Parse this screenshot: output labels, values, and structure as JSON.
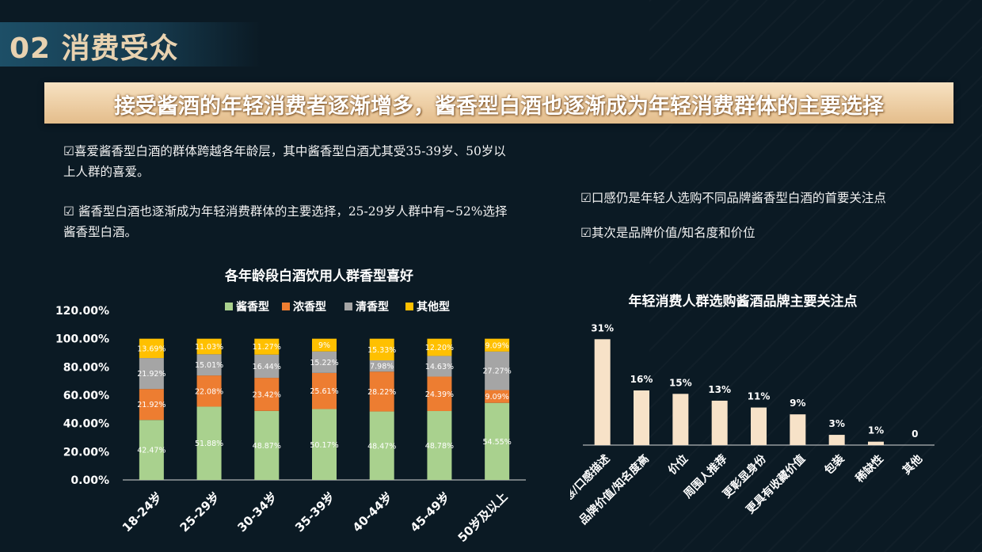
{
  "section": {
    "title": "02 消费受众"
  },
  "banner": {
    "text": "接受酱酒的年轻消费者逐渐增多，酱香型白酒也逐渐成为年轻消费群体的主要选择"
  },
  "bullets_left": [
    "☑喜爱酱香型白酒的群体跨越各年龄层，其中酱香型白酒尤其受35-39岁、50岁以上人群的喜爱。",
    "☑ 酱香型白酒也逐渐成为年轻消费群体的主要选择，25-29岁人群中有~52%选择酱香型白酒。"
  ],
  "bullets_right": [
    "☑口感仍是年轻人选购不同品牌酱香型白酒的首要关注点",
    "☑其次是品牌价值/知名度和价位"
  ],
  "colors": {
    "jiang": "#a9d18e",
    "nong": "#ed7d31",
    "qing": "#a5a5a5",
    "other": "#ffc000",
    "bar2": "#f7e2c8"
  },
  "chart_data": [
    {
      "type": "bar",
      "stacked": true,
      "title": "各年龄段白酒饮用人群香型喜好",
      "categories": [
        "18-24岁",
        "25-29岁",
        "30-34岁",
        "35-39岁",
        "40-44岁",
        "45-49岁",
        "50岁及以上"
      ],
      "series": [
        {
          "name": "酱香型",
          "values": [
            42.47,
            51.88,
            48.87,
            50.17,
            48.47,
            48.78,
            54.55
          ],
          "labels": [
            "42.47%",
            "51.88%",
            "48.87%",
            "50.17%",
            "48.47%",
            "48.78%",
            "54.55%"
          ]
        },
        {
          "name": "浓香型",
          "values": [
            21.92,
            22.08,
            23.42,
            25.61,
            28.22,
            24.39,
            9.09
          ],
          "labels": [
            "21.92%",
            "22.08%",
            "23.42%",
            "25.61%",
            "28.22%",
            "24.39%",
            "9.09%"
          ]
        },
        {
          "name": "清香型",
          "values": [
            21.92,
            15.01,
            16.44,
            15.22,
            7.98,
            14.63,
            27.27
          ],
          "labels": [
            "21.92%",
            "15.01%",
            "16.44%",
            "15.22%",
            "7.98%",
            "14.63%",
            "27.27%"
          ]
        },
        {
          "name": "其他型",
          "values": [
            13.69,
            11.03,
            11.27,
            9.0,
            15.33,
            12.2,
            9.09
          ],
          "labels": [
            "13.69%",
            "11.03%",
            "11.27%",
            "9%",
            "15.33%",
            "12.20%",
            "9.09%"
          ]
        }
      ],
      "ylim": [
        0,
        120
      ],
      "yticks": [
        "0.00%",
        "20.00%",
        "40.00%",
        "60.00%",
        "80.00%",
        "100.00%",
        "120.00%"
      ],
      "legend": "top"
    },
    {
      "type": "bar",
      "title": "年轻消费人群选购酱酒品牌主要关注点",
      "categories": [
        "口感/口感描述",
        "品牌价值/知名度高",
        "价位",
        "周围人推荐",
        "更彰显身份",
        "更具有收藏价值",
        "包装",
        "稀缺性",
        "其他"
      ],
      "values": [
        31,
        16,
        15,
        13,
        11,
        9,
        3,
        1,
        0
      ],
      "labels": [
        "31%",
        "16%",
        "15%",
        "13%",
        "11%",
        "9%",
        "3%",
        "1%",
        "0"
      ],
      "ylim": [
        0,
        35
      ]
    }
  ]
}
